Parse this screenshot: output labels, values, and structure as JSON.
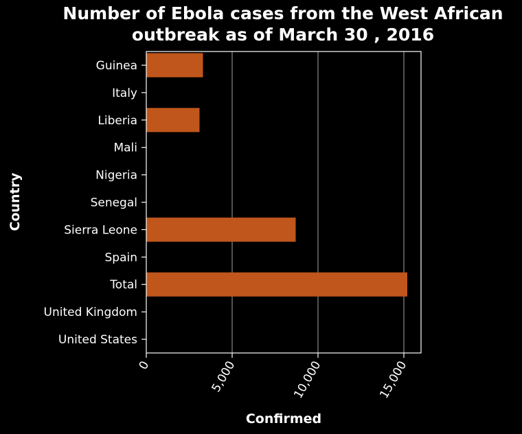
{
  "chart_data": {
    "type": "bar",
    "orientation": "horizontal",
    "title": "Number of Ebola cases from the West African outbreak as of March 30 , 2016",
    "title_lines": [
      "Number of Ebola cases from the West African",
      "outbreak as of March 30 , 2016"
    ],
    "xlabel": "Confirmed",
    "ylabel": "Country",
    "categories": [
      "Guinea",
      "Italy",
      "Liberia",
      "Mali",
      "Nigeria",
      "Senegal",
      "Sierra Leone",
      "Spain",
      "Total",
      "United Kingdom",
      "United States"
    ],
    "values": [
      3300,
      0,
      3100,
      7,
      19,
      1,
      8700,
      1,
      15200,
      1,
      4
    ],
    "xlim": [
      0,
      16000
    ],
    "x_ticks": [
      0,
      5000,
      10000,
      15000
    ],
    "x_tick_labels": [
      "0",
      "5,000",
      "10,000",
      "15,000"
    ],
    "grid": "vertical",
    "legend": "none",
    "colors": {
      "background": "#000000",
      "bar": "#c0561b",
      "text": "#ffffff",
      "grid": "#8a8a8a",
      "axis": "#ffffff"
    }
  }
}
